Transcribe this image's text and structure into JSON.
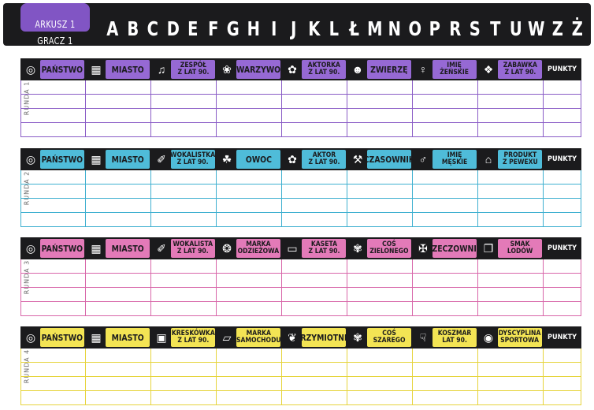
{
  "sheet": {
    "label": "ARKUSZ 1",
    "player": "GRACZ 1"
  },
  "alphabet": [
    "A",
    "B",
    "C",
    "D",
    "E",
    "F",
    "G",
    "H",
    "I",
    "J",
    "K",
    "L",
    "Ł",
    "M",
    "N",
    "O",
    "P",
    "R",
    "S",
    "T",
    "U",
    "W",
    "Z",
    "Ż"
  ],
  "points_label": "PUNKTY",
  "rounds": [
    {
      "label": "RUNDA 1",
      "color": "#9669d4",
      "line_color": "#8a5cc6",
      "categories": [
        {
          "label": "PAŃSTWO",
          "icon": "globe-icon"
        },
        {
          "label": "MIASTO",
          "icon": "city-icon"
        },
        {
          "label": "ZESPÓŁ\nZ LAT 90.",
          "icon": "music-note-icon"
        },
        {
          "label": "WARZYWO",
          "icon": "carrot-icon"
        },
        {
          "label": "AKTORKA\nZ LAT 90.",
          "icon": "film-reel-icon"
        },
        {
          "label": "ZWIERZĘ",
          "icon": "owl-icon"
        },
        {
          "label": "IMIĘ\nŻEŃSKIE",
          "icon": "female-symbol-icon"
        },
        {
          "label": "ZABAWKA\nZ LAT 90.",
          "icon": "toy-icon"
        }
      ]
    },
    {
      "label": "RUNDA 2",
      "color": "#4fbcd9",
      "line_color": "#3fb0d0",
      "categories": [
        {
          "label": "PAŃSTWO",
          "icon": "globe-icon"
        },
        {
          "label": "MIASTO",
          "icon": "city-icon"
        },
        {
          "label": "WOKALISTKA\nZ LAT 90.",
          "icon": "microphone-icon"
        },
        {
          "label": "OWOC",
          "icon": "apple-icon"
        },
        {
          "label": "AKTOR\nZ LAT 90.",
          "icon": "film-reel-icon"
        },
        {
          "label": "CZASOWNIK",
          "icon": "running-person-icon"
        },
        {
          "label": "IMIĘ\nMĘSKIE",
          "icon": "male-symbol-icon"
        },
        {
          "label": "PRODUKT\nZ PEWEXU",
          "icon": "shop-icon"
        }
      ]
    },
    {
      "label": "RUNDA 3",
      "color": "#e37ab8",
      "line_color": "#d866a9",
      "categories": [
        {
          "label": "PAŃSTWO",
          "icon": "globe-icon"
        },
        {
          "label": "MIASTO",
          "icon": "city-icon"
        },
        {
          "label": "WOKALISTA\nZ LAT 90.",
          "icon": "microphone-icon"
        },
        {
          "label": "MARKA\nODZIEŻOWA",
          "icon": "tshirt-icon"
        },
        {
          "label": "KASETA\nZ LAT 90.",
          "icon": "cassette-icon"
        },
        {
          "label": "COŚ\nZIELONEGO",
          "icon": "palette-icon"
        },
        {
          "label": "RZECZOWNIK",
          "icon": "desk-lamp-icon"
        },
        {
          "label": "SMAK\nLODÓW",
          "icon": "popsicle-icon"
        }
      ]
    },
    {
      "label": "RUNDA 4",
      "color": "#f3e454",
      "line_color": "#e6d43c",
      "categories": [
        {
          "label": "PAŃSTWO",
          "icon": "globe-icon"
        },
        {
          "label": "MIASTO",
          "icon": "city-icon"
        },
        {
          "label": "KRESKÓWKA\nZ LAT 90.",
          "icon": "tv-icon"
        },
        {
          "label": "MARKA\nSAMOCHODU",
          "icon": "car-icon"
        },
        {
          "label": "PRZYMIOTNIK",
          "icon": "chili-pepper-icon"
        },
        {
          "label": "COŚ\nSZAREGO",
          "icon": "palette-icon"
        },
        {
          "label": "KOSZMAR\nLAT 90.",
          "icon": "thumbs-down-icon"
        },
        {
          "label": "DYSCYPLINA\nSPORTOWA",
          "icon": "basketball-icon"
        }
      ]
    }
  ]
}
